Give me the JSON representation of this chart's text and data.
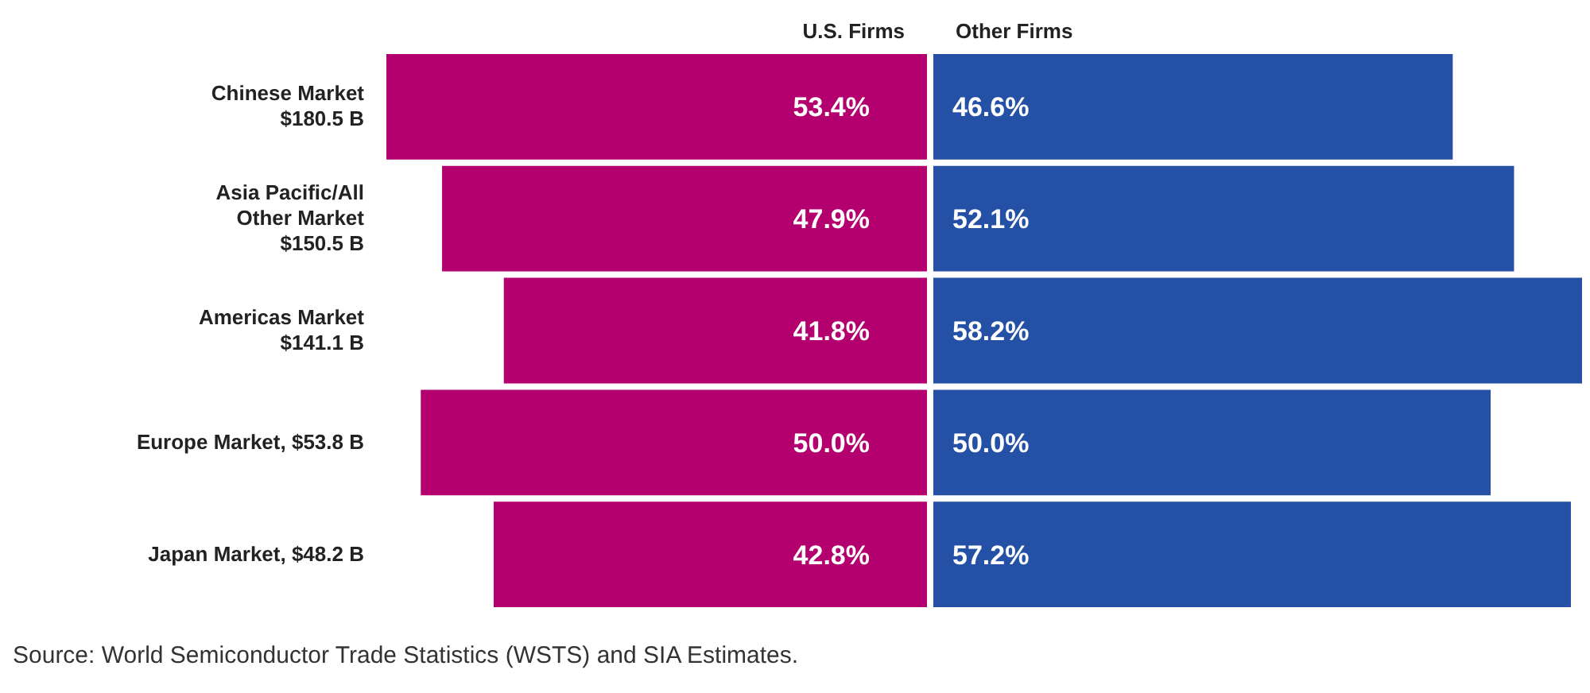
{
  "chart_data": [
    {
      "type": "bar",
      "orientation": "horizontal",
      "title": "U.S. Firms",
      "color": "#b3006e",
      "tick_labels": "y",
      "xlim": [
        53.4,
        0
      ],
      "categories": [
        "Chinese Market\n$180.5 B",
        "Asia Pacific/All\nOther Market\n$150.5 B",
        "Americas Market\n$141.1 B",
        "Europe Market, $53.8 B",
        "Japan Market, $48.2 B"
      ],
      "values": [
        53.4,
        47.9,
        41.8,
        50.0,
        42.8
      ],
      "value_labels": [
        "53.4%",
        "47.9%",
        "41.8%",
        "50.0%",
        "42.8%"
      ]
    },
    {
      "type": "bar",
      "orientation": "horizontal",
      "title": "Other Firms",
      "color": "#2450a5",
      "tick_labels": false,
      "xlim": [
        0,
        58.2
      ],
      "categories": [
        null,
        null,
        null,
        null,
        null
      ],
      "values": [
        46.6,
        52.1,
        58.2,
        50.0,
        57.2
      ],
      "value_labels": [
        "46.6%",
        "52.1%",
        "58.2%",
        "50.0%",
        "57.2%"
      ],
      "annotations": [
        "Source: World Semiconductor Trade Statistics (WSTS) and SIA Estimates."
      ]
    }
  ]
}
